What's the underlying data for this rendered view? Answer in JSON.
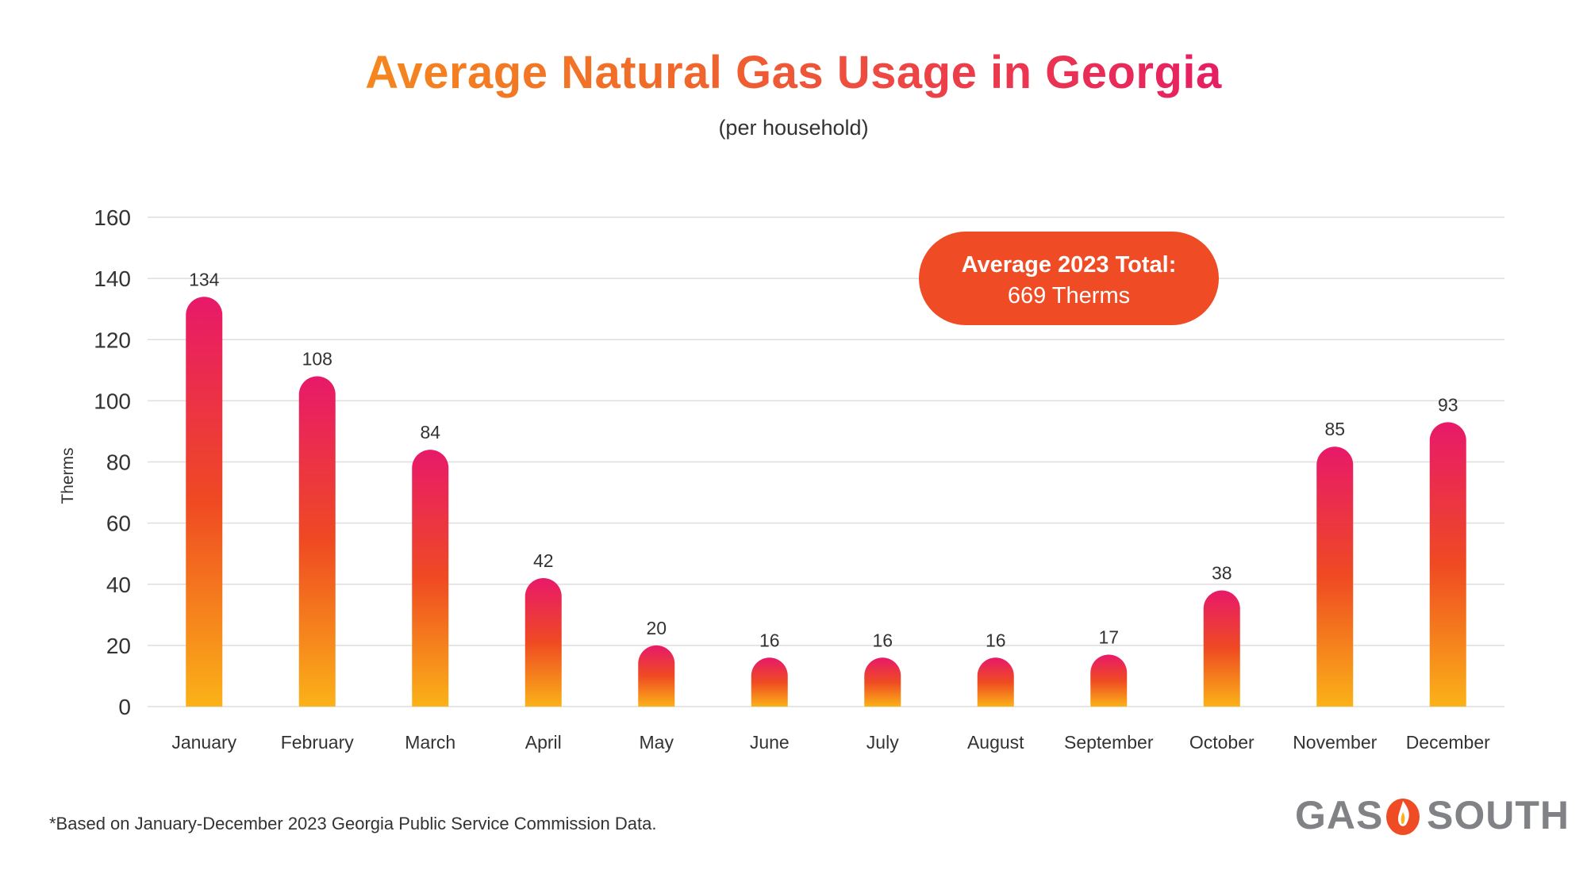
{
  "chart_data": {
    "type": "bar",
    "title": "Average Natural Gas Usage in Georgia",
    "subtitle": "(per household)",
    "ylabel": "Therms",
    "xlabel": "",
    "ylim": [
      0,
      160
    ],
    "yticks": [
      0,
      20,
      40,
      60,
      80,
      100,
      120,
      140,
      160
    ],
    "grid": true,
    "categories": [
      "January",
      "February",
      "March",
      "April",
      "May",
      "June",
      "July",
      "August",
      "September",
      "October",
      "November",
      "December"
    ],
    "values": [
      134,
      108,
      84,
      42,
      20,
      16,
      16,
      16,
      17,
      38,
      85,
      93
    ],
    "annotation": {
      "line1": "Average 2023 Total:",
      "line2": "669 Therms"
    }
  },
  "colors": {
    "bar_top": "#e8196a",
    "bar_mid": "#ef4a22",
    "bar_bottom": "#fbb218",
    "callout": "#ef4b24",
    "logo_gray": "#808285"
  },
  "footnote": "*Based on January-December 2023 Georgia Public Service Commission Data.",
  "logo": {
    "left_text": "GAS",
    "right_text": "SOUTH",
    "icon": "flame-icon"
  }
}
